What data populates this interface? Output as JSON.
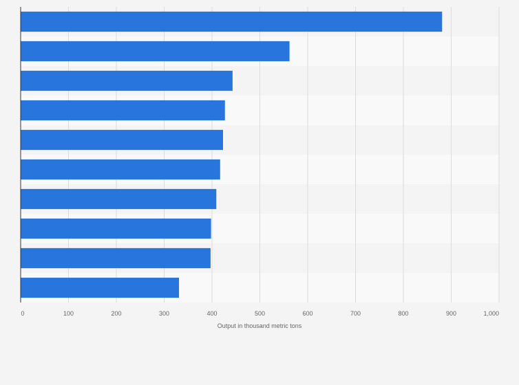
{
  "chart_data": {
    "type": "bar",
    "orientation": "horizontal",
    "title": "",
    "xlabel": "Output in thousand metric tons",
    "ylabel": "",
    "categories": [
      "",
      "",
      "",
      "",
      "",
      "",
      "",
      "",
      "",
      ""
    ],
    "values": [
      881,
      562,
      443,
      427,
      423,
      417,
      409,
      398,
      397,
      331
    ],
    "xlim": [
      0,
      1000
    ],
    "ticks": [
      0,
      100,
      200,
      300,
      400,
      500,
      600,
      700,
      800,
      900,
      1000
    ],
    "tick_labels": [
      "0",
      "100",
      "200",
      "300",
      "400",
      "500",
      "600",
      "700",
      "800",
      "900",
      "1,000"
    ],
    "grid": true,
    "legend": "none"
  },
  "colors": {
    "bar": "#2876dd",
    "background": "#f4f4f4",
    "band_light": "#f9f9f9",
    "band_dark": "#f4f4f4",
    "gridline": "#dcdcdc",
    "axis": "#333333",
    "text": "#666666"
  }
}
